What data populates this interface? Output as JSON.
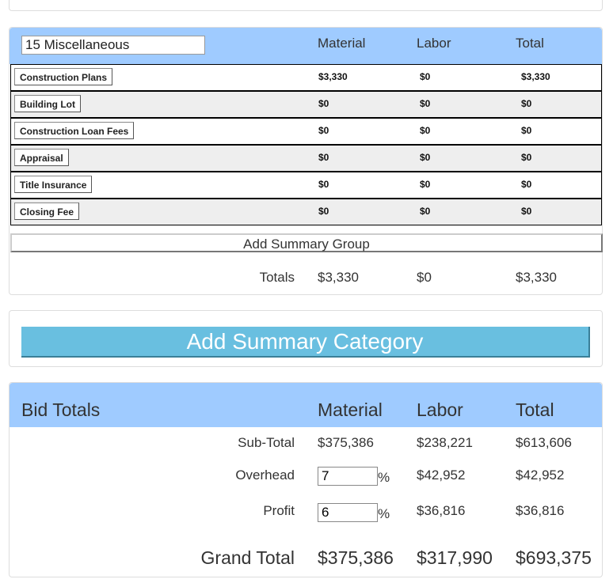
{
  "category": {
    "name": "15 Miscellaneous",
    "headers": {
      "material": "Material",
      "labor": "Labor",
      "total": "Total"
    },
    "rows": [
      {
        "label": "Construction Plans",
        "material": "$3,330",
        "labor": "$0",
        "total": "$3,330"
      },
      {
        "label": "Building Lot",
        "material": "$0",
        "labor": "$0",
        "total": "$0"
      },
      {
        "label": "Construction Loan Fees",
        "material": "$0",
        "labor": "$0",
        "total": "$0"
      },
      {
        "label": "Appraisal",
        "material": "$0",
        "labor": "$0",
        "total": "$0"
      },
      {
        "label": "Title Insurance",
        "material": "$0",
        "labor": "$0",
        "total": "$0"
      },
      {
        "label": "Closing Fee",
        "material": "$0",
        "labor": "$0",
        "total": "$0"
      }
    ],
    "add_group_label": "Add Summary Group",
    "totals": {
      "label": "Totals",
      "material": "$3,330",
      "labor": "$0",
      "total": "$3,330"
    }
  },
  "add_category_label": "Add Summary Category",
  "bid": {
    "title": "Bid Totals",
    "headers": {
      "material": "Material",
      "labor": "Labor",
      "total": "Total"
    },
    "subtotal": {
      "label": "Sub-Total",
      "material": "$375,386",
      "labor": "$238,221",
      "total": "$613,606"
    },
    "overhead": {
      "label": "Overhead",
      "value": "7",
      "unit": "%",
      "labor": "$42,952",
      "total": "$42,952"
    },
    "profit": {
      "label": "Profit",
      "value": "6",
      "unit": "%",
      "labor": "$36,816",
      "total": "$36,816"
    },
    "grand": {
      "label": "Grand Total",
      "material": "$375,386",
      "labor": "$317,990",
      "total": "$693,375"
    }
  },
  "colors": {
    "header": "#9fcbff",
    "button": "#69bfe0"
  }
}
